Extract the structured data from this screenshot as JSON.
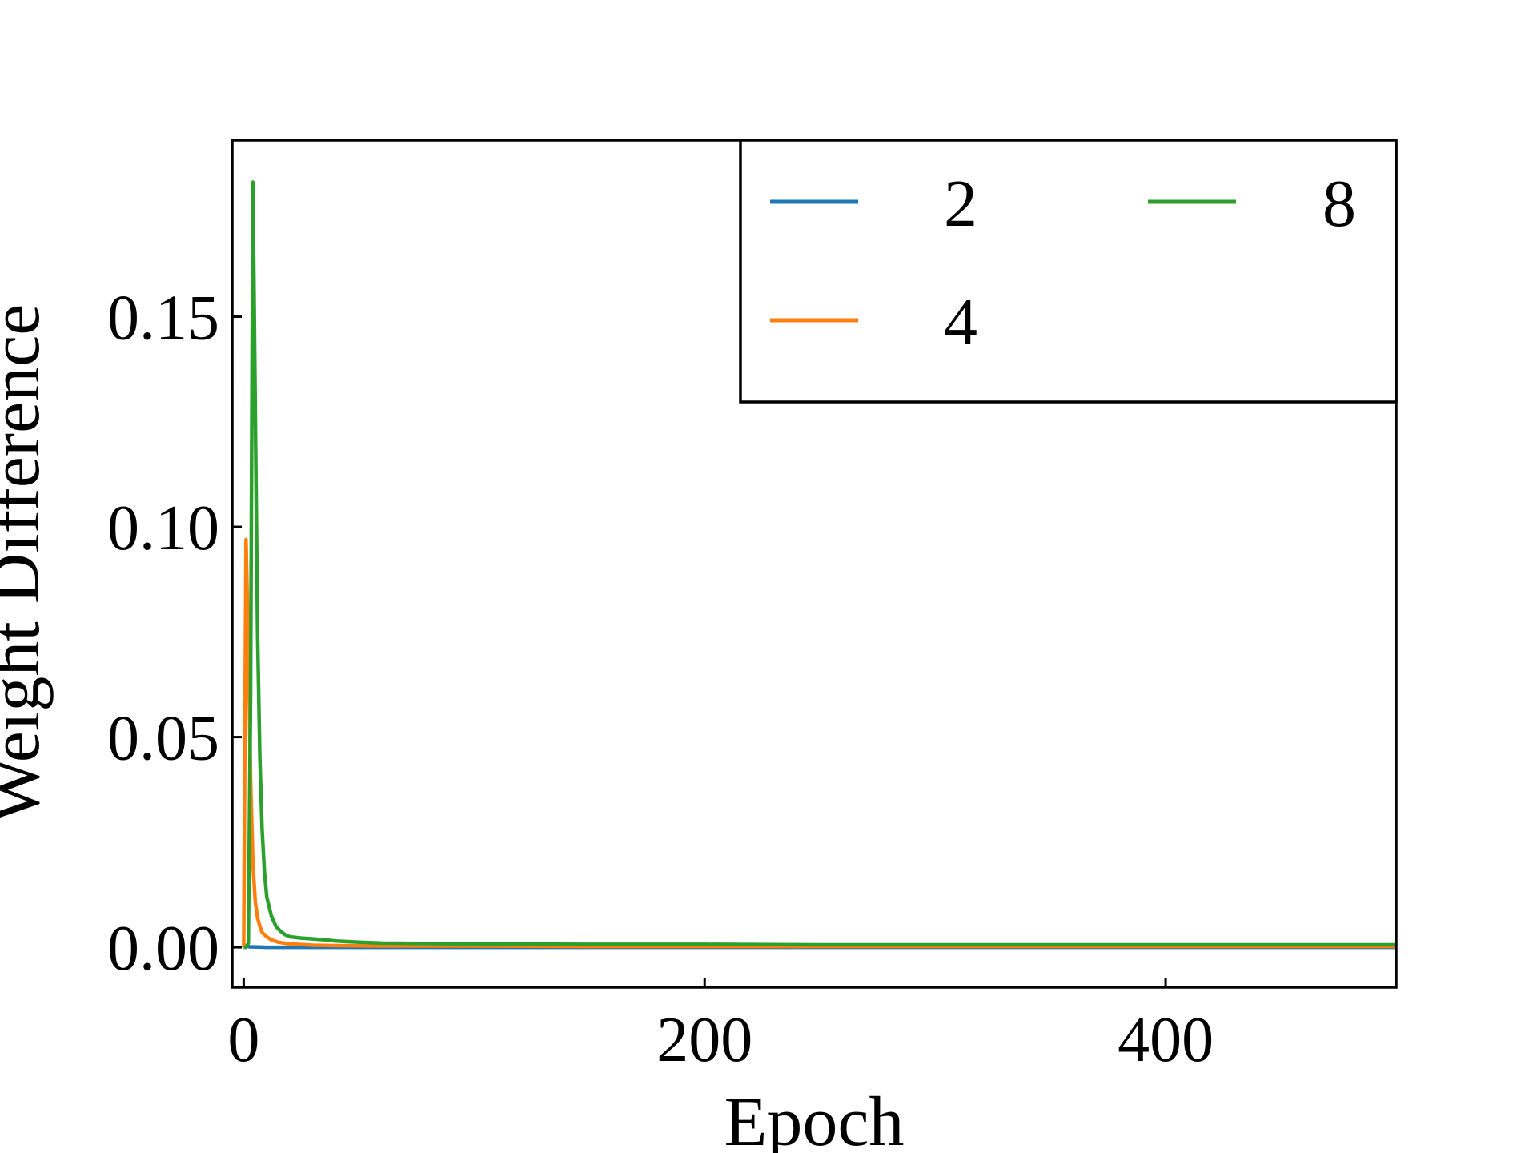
{
  "chart_data": {
    "type": "line",
    "xlabel": "Epoch",
    "ylabel": "Weight Difference",
    "xlim": [
      -5,
      500
    ],
    "ylim": [
      -0.0095,
      0.192
    ],
    "xticks": [
      0,
      200,
      400
    ],
    "xtick_labels": [
      "0",
      "200",
      "400"
    ],
    "yticks": [
      0.0,
      0.05,
      0.1,
      0.15
    ],
    "ytick_labels": [
      "0.00",
      "0.05",
      "0.10",
      "0.15"
    ],
    "grid": false,
    "legend": {
      "placement": "top-right",
      "columns": 2
    },
    "series": [
      {
        "name": "2",
        "color": "#1f77b4",
        "x": [
          0,
          1,
          2,
          3,
          5,
          10,
          20,
          50,
          100,
          200,
          300,
          400,
          500
        ],
        "y": [
          0.0,
          0.0003,
          0.0002,
          0.0001,
          0.0001,
          0.0,
          0.0,
          0.0,
          0.0,
          0.0,
          0.0,
          0.0,
          0.0
        ]
      },
      {
        "name": "4",
        "color": "#ff7f0e",
        "x": [
          0,
          1,
          2,
          3,
          4,
          5,
          6,
          7,
          8,
          10,
          12,
          15,
          20,
          30,
          40,
          60,
          100,
          150,
          200,
          250,
          300,
          350,
          400,
          450,
          500
        ],
        "y": [
          0.0,
          0.097,
          0.072,
          0.04,
          0.02,
          0.011,
          0.007,
          0.005,
          0.0035,
          0.0025,
          0.0018,
          0.0012,
          0.0008,
          0.0005,
          0.0004,
          0.0003,
          0.0003,
          0.0002,
          0.0002,
          0.0002,
          0.0002,
          0.0002,
          0.0002,
          0.0002,
          0.0002
        ]
      },
      {
        "name": "8",
        "color": "#2ca02c",
        "x": [
          0,
          1,
          2,
          3,
          4,
          5,
          6,
          7,
          8,
          9,
          10,
          12,
          14,
          16,
          18,
          20,
          25,
          30,
          35,
          40,
          50,
          60,
          80,
          100,
          150,
          200,
          250,
          300,
          350,
          400,
          450,
          500
        ],
        "y": [
          0.0,
          0.0,
          0.001,
          0.06,
          0.182,
          0.13,
          0.075,
          0.045,
          0.028,
          0.018,
          0.012,
          0.0075,
          0.005,
          0.0038,
          0.003,
          0.0025,
          0.0022,
          0.002,
          0.0018,
          0.0015,
          0.0012,
          0.001,
          0.0009,
          0.0008,
          0.0007,
          0.0007,
          0.0006,
          0.0006,
          0.0006,
          0.0006,
          0.0006,
          0.0006
        ]
      }
    ]
  }
}
